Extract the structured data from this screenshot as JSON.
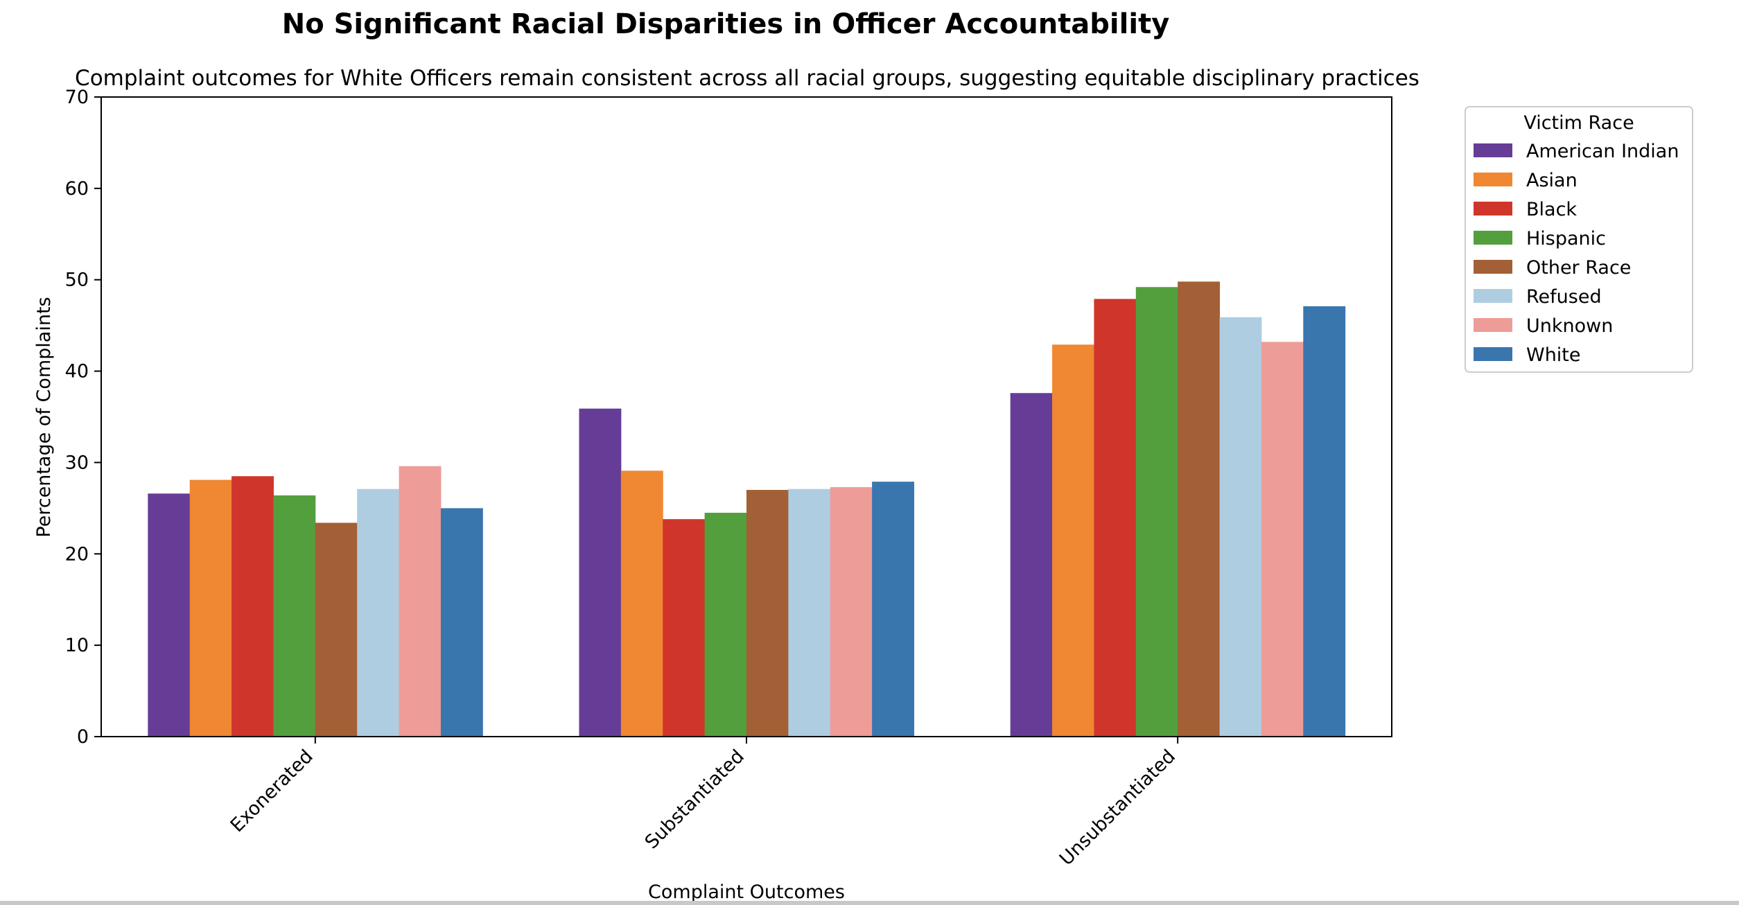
{
  "chart_data": {
    "type": "bar",
    "title": "No Significant Racial Disparities in Officer Accountability",
    "subtitle": "Complaint outcomes for White Officers remain consistent across all racial groups, suggesting equitable disciplinary practices",
    "xlabel": "Complaint Outcomes",
    "ylabel": "Percentage of Complaints",
    "ylim": [
      0,
      70
    ],
    "yticks": [
      "0",
      "10",
      "20",
      "30",
      "40",
      "50",
      "60",
      "70"
    ],
    "categories": [
      "Exonerated",
      "Substantiated",
      "Unsubstantiated"
    ],
    "legend_title": "Victim Race",
    "legend_position": "outside-top-right",
    "grid": false,
    "series": [
      {
        "name": "American Indian",
        "color": "#663d96",
        "values": [
          26.6,
          35.9,
          37.6
        ]
      },
      {
        "name": "Asian",
        "color": "#ef8733",
        "values": [
          28.1,
          29.1,
          42.9
        ]
      },
      {
        "name": "Black",
        "color": "#d0352b",
        "values": [
          28.5,
          23.8,
          47.9
        ]
      },
      {
        "name": "Hispanic",
        "color": "#539f3e",
        "values": [
          26.4,
          24.5,
          49.2
        ]
      },
      {
        "name": "Other Race",
        "color": "#a35f35",
        "values": [
          23.4,
          27.0,
          49.8
        ]
      },
      {
        "name": "Refused",
        "color": "#aecde1",
        "values": [
          27.1,
          27.1,
          45.9
        ]
      },
      {
        "name": "Unknown",
        "color": "#ee9c98",
        "values": [
          29.6,
          27.3,
          43.2
        ]
      },
      {
        "name": "White",
        "color": "#3a76ae",
        "values": [
          25.0,
          27.9,
          47.1
        ]
      }
    ]
  }
}
